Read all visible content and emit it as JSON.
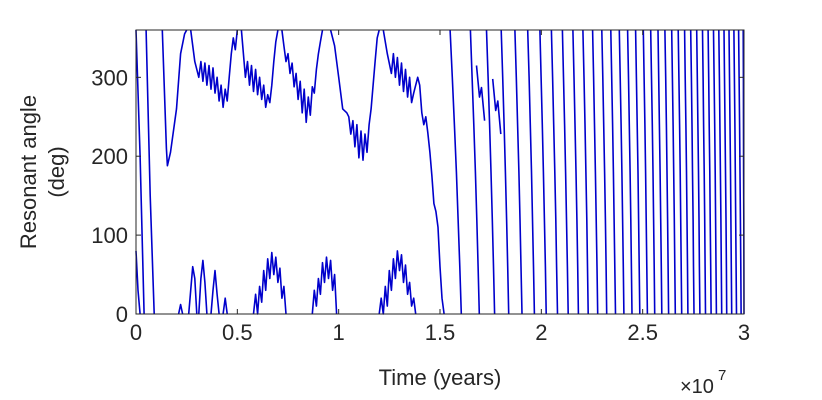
{
  "chart_data": {
    "type": "line",
    "xlabel": "Time (years)",
    "ylabel_lines": [
      "Resonant angle",
      "(deg)"
    ],
    "x_multiplier_base": "×10",
    "x_multiplier_exponent": "7",
    "xlim": [
      0,
      3
    ],
    "ylim": [
      0,
      360
    ],
    "xticks": [
      0,
      0.5,
      1,
      1.5,
      2,
      2.5,
      3
    ],
    "xtick_labels": [
      "0",
      "0.5",
      "1",
      "1.5",
      "2",
      "2.5",
      "3"
    ],
    "yticks": [
      0,
      100,
      200,
      300
    ],
    "ytick_labels": [
      "0",
      "100",
      "200",
      "300"
    ],
    "grid": false,
    "line_color": "#0000cc",
    "series": [
      {
        "segments": [
          [
            [
              0.0,
              360
            ],
            [
              0.02,
              200
            ],
            [
              0.04,
              0
            ]
          ],
          [
            [
              0.05,
              360
            ],
            [
              0.07,
              150
            ],
            [
              0.09,
              0
            ]
          ],
          [
            [
              0.13,
              360
            ],
            [
              0.15,
              210
            ],
            [
              0.155,
              188
            ],
            [
              0.17,
              205
            ],
            [
              0.2,
              260
            ],
            [
              0.22,
              330
            ],
            [
              0.24,
              355
            ],
            [
              0.25,
              360
            ]
          ],
          [
            [
              0.27,
              360
            ],
            [
              0.29,
              320
            ],
            [
              0.31,
              300
            ],
            [
              0.32,
              320
            ],
            [
              0.33,
              295
            ],
            [
              0.34,
              318
            ],
            [
              0.35,
              290
            ],
            [
              0.36,
              315
            ],
            [
              0.37,
              285
            ],
            [
              0.38,
              312
            ],
            [
              0.39,
              280
            ],
            [
              0.4,
              300
            ],
            [
              0.41,
              270
            ],
            [
              0.42,
              290
            ],
            [
              0.43,
              262
            ],
            [
              0.44,
              285
            ],
            [
              0.45,
              270
            ],
            [
              0.46,
              300
            ],
            [
              0.47,
              330
            ],
            [
              0.48,
              350
            ],
            [
              0.49,
              335
            ],
            [
              0.5,
              360
            ]
          ],
          [
            [
              0.52,
              360
            ],
            [
              0.53,
              330
            ],
            [
              0.54,
              300
            ],
            [
              0.55,
              320
            ],
            [
              0.56,
              290
            ],
            [
              0.57,
              315
            ],
            [
              0.58,
              282
            ],
            [
              0.59,
              310
            ],
            [
              0.6,
              278
            ],
            [
              0.61,
              300
            ],
            [
              0.62,
              272
            ],
            [
              0.63,
              290
            ],
            [
              0.64,
              262
            ],
            [
              0.65,
              278
            ],
            [
              0.66,
              268
            ],
            [
              0.67,
              290
            ],
            [
              0.68,
              320
            ],
            [
              0.69,
              345
            ],
            [
              0.7,
              360
            ]
          ],
          [
            [
              0.72,
              360
            ],
            [
              0.73,
              340
            ],
            [
              0.74,
              320
            ],
            [
              0.75,
              330
            ],
            [
              0.76,
              305
            ],
            [
              0.77,
              318
            ],
            [
              0.78,
              288
            ],
            [
              0.79,
              305
            ],
            [
              0.8,
              272
            ],
            [
              0.81,
              295
            ],
            [
              0.82,
              255
            ],
            [
              0.83,
              285
            ],
            [
              0.84,
              243
            ],
            [
              0.85,
              275
            ],
            [
              0.86,
              252
            ],
            [
              0.87,
              288
            ],
            [
              0.88,
              280
            ],
            [
              0.89,
              310
            ],
            [
              0.9,
              330
            ],
            [
              0.91,
              345
            ],
            [
              0.92,
              360
            ]
          ],
          [
            [
              0.96,
              360
            ],
            [
              0.98,
              340
            ],
            [
              1.0,
              300
            ],
            [
              1.02,
              260
            ],
            [
              1.04,
              255
            ],
            [
              1.05,
              250
            ],
            [
              1.06,
              228
            ],
            [
              1.07,
              245
            ],
            [
              1.08,
              212
            ],
            [
              1.09,
              240
            ],
            [
              1.1,
              198
            ],
            [
              1.11,
              232
            ],
            [
              1.12,
              195
            ],
            [
              1.13,
              228
            ],
            [
              1.14,
              205
            ],
            [
              1.15,
              240
            ],
            [
              1.16,
              260
            ],
            [
              1.17,
              290
            ],
            [
              1.18,
              320
            ],
            [
              1.19,
              350
            ],
            [
              1.2,
              360
            ]
          ],
          [
            [
              1.22,
              360
            ],
            [
              1.24,
              330
            ],
            [
              1.26,
              305
            ],
            [
              1.27,
              330
            ],
            [
              1.28,
              300
            ],
            [
              1.29,
              325
            ],
            [
              1.3,
              290
            ],
            [
              1.31,
              318
            ],
            [
              1.32,
              282
            ],
            [
              1.33,
              310
            ],
            [
              1.34,
              275
            ],
            [
              1.35,
              300
            ],
            [
              1.36,
              268
            ],
            [
              1.37,
              280
            ],
            [
              1.38,
              290
            ],
            [
              1.39,
              300
            ],
            [
              1.4,
              290
            ],
            [
              1.41,
              255
            ],
            [
              1.42,
              240
            ],
            [
              1.43,
              250
            ],
            [
              1.44,
              230
            ],
            [
              1.45,
              205
            ],
            [
              1.46,
              175
            ],
            [
              1.47,
              140
            ],
            [
              1.48,
              130
            ],
            [
              1.49,
              110
            ],
            [
              1.5,
              60
            ],
            [
              1.51,
              20
            ],
            [
              1.52,
              0
            ]
          ],
          [
            [
              0.0,
              80
            ],
            [
              0.01,
              30
            ],
            [
              0.02,
              0
            ]
          ],
          [
            [
              0.21,
              0
            ],
            [
              0.22,
              12
            ],
            [
              0.23,
              0
            ]
          ],
          [
            [
              0.26,
              0
            ],
            [
              0.27,
              30
            ],
            [
              0.28,
              60
            ],
            [
              0.29,
              45
            ],
            [
              0.3,
              0
            ]
          ],
          [
            [
              0.31,
              0
            ],
            [
              0.32,
              45
            ],
            [
              0.33,
              68
            ],
            [
              0.34,
              40
            ],
            [
              0.35,
              0
            ]
          ],
          [
            [
              0.37,
              0
            ],
            [
              0.38,
              30
            ],
            [
              0.39,
              55
            ],
            [
              0.4,
              25
            ],
            [
              0.41,
              0
            ]
          ],
          [
            [
              0.43,
              0
            ],
            [
              0.44,
              20
            ],
            [
              0.45,
              0
            ]
          ],
          [
            [
              0.58,
              0
            ],
            [
              0.59,
              25
            ],
            [
              0.6,
              0
            ],
            [
              0.61,
              35
            ],
            [
              0.62,
              15
            ],
            [
              0.63,
              55
            ],
            [
              0.64,
              30
            ],
            [
              0.65,
              70
            ],
            [
              0.66,
              45
            ],
            [
              0.67,
              78
            ],
            [
              0.68,
              50
            ],
            [
              0.69,
              72
            ],
            [
              0.7,
              40
            ],
            [
              0.71,
              58
            ],
            [
              0.72,
              20
            ],
            [
              0.73,
              35
            ],
            [
              0.74,
              0
            ]
          ],
          [
            [
              0.87,
              0
            ],
            [
              0.88,
              30
            ],
            [
              0.89,
              10
            ],
            [
              0.9,
              45
            ],
            [
              0.91,
              25
            ],
            [
              0.92,
              65
            ],
            [
              0.93,
              40
            ],
            [
              0.94,
              72
            ],
            [
              0.95,
              45
            ],
            [
              0.96,
              68
            ],
            [
              0.97,
              30
            ],
            [
              0.98,
              50
            ],
            [
              0.99,
              0
            ]
          ],
          [
            [
              1.2,
              0
            ],
            [
              1.21,
              20
            ],
            [
              1.22,
              0
            ],
            [
              1.23,
              35
            ],
            [
              1.24,
              10
            ],
            [
              1.25,
              55
            ],
            [
              1.26,
              30
            ],
            [
              1.27,
              70
            ],
            [
              1.28,
              45
            ],
            [
              1.29,
              80
            ],
            [
              1.3,
              55
            ],
            [
              1.31,
              75
            ],
            [
              1.32,
              40
            ],
            [
              1.33,
              62
            ],
            [
              1.34,
              25
            ],
            [
              1.35,
              40
            ],
            [
              1.36,
              10
            ],
            [
              1.37,
              20
            ],
            [
              1.38,
              0
            ]
          ]
        ]
      }
    ],
    "dense_region": {
      "x_start": 1.55,
      "x_end": 3.0,
      "period_start": 0.1,
      "period_end": 0.022,
      "annotations": [
        {
          "x": 1.7,
          "y": 275
        },
        {
          "x": 1.78,
          "y": 258
        }
      ]
    }
  }
}
